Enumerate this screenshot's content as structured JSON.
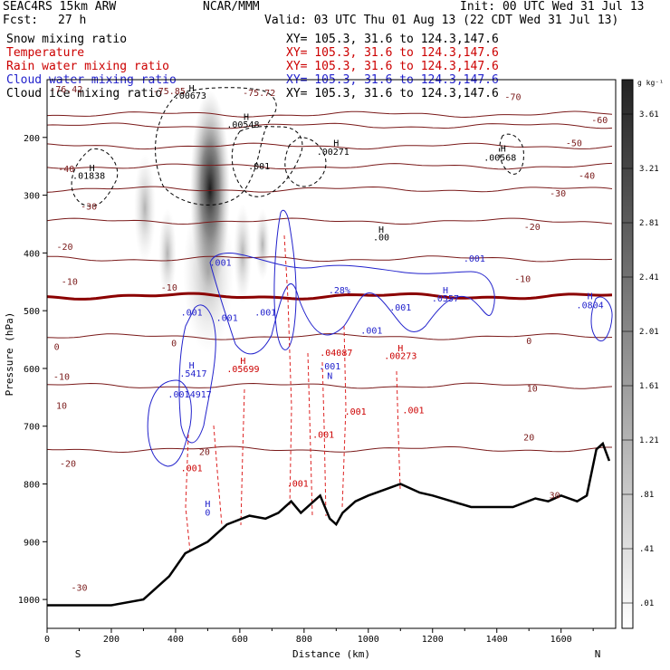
{
  "header": {
    "model": "SEAC4RS 15km ARW",
    "org": "NCAR/MMM",
    "init": "Init: 00 UTC Wed 31 Jul 13",
    "fcst_label": "Fcst:",
    "fcst_value": "27 h",
    "valid": "Valid: 03 UTC Thu 01 Aug 13 (22 CDT Wed 31 Jul 13)",
    "fields": [
      {
        "name": "Snow mixing ratio",
        "xy": "XY= 105.3, 31.6 to 124.3,147.6",
        "color": "#000000"
      },
      {
        "name": "Temperature",
        "xy": "XY= 105.3, 31.6 to 124.3,147.6",
        "color": "#cc0000"
      },
      {
        "name": "Rain water mixing ratio",
        "xy": "XY= 105.3, 31.6 to 124.3,147.6",
        "color": "#cc0000"
      },
      {
        "name": "Cloud water mixing ratio",
        "xy": "XY= 105.3, 31.6 to 124.3,147.6",
        "color": "#2222cc"
      },
      {
        "name": "Cloud ice mixing ratio",
        "xy": "XY= 105.3, 31.6 to 124.3,147.6",
        "color": "#000000"
      }
    ]
  },
  "colors": {
    "temperature": "#7a1a1a",
    "zero_isotherm": "#8b0000",
    "rain": "#dd2222",
    "cloud_water": "#2222cc",
    "ice": "#000000",
    "terrain": "#000000"
  },
  "chart_data": {
    "type": "cross-section",
    "title": "",
    "xlabel": "Distance (km)",
    "ylabel": "Pressure (hPa)",
    "xlim": [
      0,
      1770
    ],
    "ylim": [
      1050,
      100
    ],
    "xticks": [
      0,
      200,
      400,
      600,
      800,
      1000,
      1200,
      1400,
      1600
    ],
    "yticks": [
      200,
      300,
      400,
      500,
      600,
      700,
      800,
      900,
      1000
    ],
    "xends": {
      "left": "S",
      "right": "N"
    },
    "colorbar": {
      "unit": "g kg⁻¹",
      "labels": [
        ".01",
        ".41",
        ".81",
        "1.21",
        "1.61",
        "2.01",
        "2.41",
        "2.81",
        "3.21",
        "3.61"
      ]
    },
    "isotherms": [
      {
        "t": -70,
        "p": 160
      },
      {
        "t": -60,
        "p": 180
      },
      {
        "t": -50,
        "p": 215
      },
      {
        "t": -40,
        "p": 250
      },
      {
        "t": -30,
        "p": 290
      },
      {
        "t": -20,
        "p": 345
      },
      {
        "t": -10,
        "p": 410
      },
      {
        "t": 0,
        "p": 475
      },
      {
        "t": 10,
        "p": 545
      },
      {
        "t": 20,
        "p": 630
      },
      {
        "t": 30,
        "p": 740
      }
    ],
    "isotherm_labels": [
      {
        "text": "-40",
        "x": 60,
        "p": 260
      },
      {
        "text": "-30",
        "x": 130,
        "p": 325
      },
      {
        "text": "-20",
        "x": 55,
        "p": 395
      },
      {
        "text": "-10",
        "x": 70,
        "p": 455
      },
      {
        "text": "-10",
        "x": 380,
        "p": 465
      },
      {
        "text": "0",
        "x": 30,
        "p": 568
      },
      {
        "text": "0",
        "x": 395,
        "p": 562
      },
      {
        "text": "-10",
        "x": 45,
        "p": 620
      },
      {
        "text": "10",
        "x": 45,
        "p": 670
      },
      {
        "text": "-20",
        "x": 65,
        "p": 770
      },
      {
        "text": "20",
        "x": 490,
        "p": 750
      },
      {
        "text": "-30",
        "x": 100,
        "p": 985
      },
      {
        "text": "-70",
        "x": 1450,
        "p": 135
      },
      {
        "text": "-60",
        "x": 1720,
        "p": 175
      },
      {
        "text": "-50",
        "x": 1640,
        "p": 215
      },
      {
        "text": "-40",
        "x": 1680,
        "p": 272
      },
      {
        "text": "-30",
        "x": 1590,
        "p": 302
      },
      {
        "text": "-20",
        "x": 1510,
        "p": 360
      },
      {
        "text": "-10",
        "x": 1480,
        "p": 450
      },
      {
        "text": "0",
        "x": 1500,
        "p": 558
      },
      {
        "text": "10",
        "x": 1510,
        "p": 640
      },
      {
        "text": "20",
        "x": 1500,
        "p": 725
      },
      {
        "text": "30",
        "x": 1580,
        "p": 825
      },
      {
        "text": "-75.85",
        "x": 380,
        "p": 125
      },
      {
        "text": "-75.72",
        "x": 660,
        "p": 128
      },
      {
        "text": "-76.42",
        "x": 60,
        "p": 122
      }
    ],
    "terrain": [
      [
        0,
        1010
      ],
      [
        200,
        1010
      ],
      [
        300,
        1000
      ],
      [
        380,
        960
      ],
      [
        430,
        920
      ],
      [
        500,
        900
      ],
      [
        560,
        870
      ],
      [
        630,
        855
      ],
      [
        680,
        860
      ],
      [
        720,
        850
      ],
      [
        760,
        830
      ],
      [
        790,
        850
      ],
      [
        850,
        820
      ],
      [
        880,
        860
      ],
      [
        900,
        870
      ],
      [
        920,
        850
      ],
      [
        960,
        830
      ],
      [
        1000,
        820
      ],
      [
        1050,
        810
      ],
      [
        1100,
        800
      ],
      [
        1160,
        815
      ],
      [
        1200,
        820
      ],
      [
        1260,
        830
      ],
      [
        1320,
        840
      ],
      [
        1380,
        840
      ],
      [
        1450,
        840
      ],
      [
        1520,
        825
      ],
      [
        1560,
        830
      ],
      [
        1600,
        820
      ],
      [
        1650,
        830
      ],
      [
        1680,
        820
      ],
      [
        1710,
        740
      ],
      [
        1730,
        730
      ],
      [
        1750,
        760
      ]
    ],
    "annotations": [
      {
        "text": "H",
        "x": 140,
        "p": 258,
        "color": "#000000"
      },
      {
        "text": ".01838",
        "x": 130,
        "p": 272,
        "color": "#000000"
      },
      {
        "text": "H",
        "x": 450,
        "p": 120,
        "color": "#000000"
      },
      {
        "text": ".00673",
        "x": 445,
        "p": 133,
        "color": "#000000"
      },
      {
        "text": "H",
        "x": 620,
        "p": 170,
        "color": "#000000"
      },
      {
        "text": ".00548",
        "x": 610,
        "p": 183,
        "color": "#000000"
      },
      {
        "text": ".001",
        "x": 660,
        "p": 255,
        "color": "#000000"
      },
      {
        "text": "H",
        "x": 900,
        "p": 215,
        "color": "#000000"
      },
      {
        "text": ".00271",
        "x": 890,
        "p": 230,
        "color": "#000000"
      },
      {
        "text": "H",
        "x": 1420,
        "p": 225,
        "color": "#000000"
      },
      {
        "text": ".00568",
        "x": 1410,
        "p": 240,
        "color": "#000000"
      },
      {
        "text": "H",
        "x": 1040,
        "p": 365,
        "color": "#000000"
      },
      {
        "text": ".00",
        "x": 1040,
        "p": 378,
        "color": "#000000"
      },
      {
        "text": ".001",
        "x": 540,
        "p": 422,
        "color": "#2222cc"
      },
      {
        "text": ".001",
        "x": 1330,
        "p": 415,
        "color": "#2222cc"
      },
      {
        "text": ".001",
        "x": 450,
        "p": 508,
        "color": "#2222cc"
      },
      {
        "text": ".001",
        "x": 560,
        "p": 518,
        "color": "#2222cc"
      },
      {
        "text": ".001",
        "x": 680,
        "p": 508,
        "color": "#2222cc"
      },
      {
        "text": ".28%",
        "x": 910,
        "p": 470,
        "color": "#2222cc"
      },
      {
        "text": "H",
        "x": 1240,
        "p": 470,
        "color": "#2222cc"
      },
      {
        "text": ".0557",
        "x": 1240,
        "p": 484,
        "color": "#2222cc"
      },
      {
        "text": ".001",
        "x": 1100,
        "p": 500,
        "color": "#2222cc"
      },
      {
        "text": "H",
        "x": 1690,
        "p": 480,
        "color": "#2222cc"
      },
      {
        "text": ".0804",
        "x": 1690,
        "p": 496,
        "color": "#2222cc"
      },
      {
        "text": ".001",
        "x": 1010,
        "p": 540,
        "color": "#2222cc"
      },
      {
        "text": "H",
        "x": 450,
        "p": 600,
        "color": "#2222cc"
      },
      {
        "text": ".5417",
        "x": 455,
        "p": 614,
        "color": "#2222cc"
      },
      {
        "text": ".001",
        "x": 410,
        "p": 650,
        "color": "#2222cc"
      },
      {
        "text": ".4917",
        "x": 470,
        "p": 650,
        "color": "#2222cc"
      },
      {
        "text": ".001",
        "x": 880,
        "p": 602,
        "color": "#2222cc"
      },
      {
        "text": "N",
        "x": 880,
        "p": 618,
        "color": "#2222cc"
      },
      {
        "text": "H",
        "x": 610,
        "p": 592,
        "color": "#cc0000"
      },
      {
        "text": ".05699",
        "x": 610,
        "p": 606,
        "color": "#cc0000"
      },
      {
        "text": ".04087",
        "x": 900,
        "p": 578,
        "color": "#cc0000"
      },
      {
        "text": "H",
        "x": 1100,
        "p": 570,
        "color": "#cc0000"
      },
      {
        "text": ".00273",
        "x": 1100,
        "p": 584,
        "color": "#cc0000"
      },
      {
        "text": ".001",
        "x": 960,
        "p": 680,
        "color": "#cc0000"
      },
      {
        "text": ".001",
        "x": 1140,
        "p": 678,
        "color": "#cc0000"
      },
      {
        "text": ".001",
        "x": 860,
        "p": 720,
        "color": "#cc0000"
      },
      {
        "text": ".001",
        "x": 450,
        "p": 778,
        "color": "#cc0000"
      },
      {
        "text": ".001",
        "x": 780,
        "p": 805,
        "color": "#cc0000"
      },
      {
        "text": "H",
        "x": 500,
        "p": 840,
        "color": "#2222cc"
      },
      {
        "text": "0",
        "x": 500,
        "p": 855,
        "color": "#2222cc"
      }
    ]
  }
}
